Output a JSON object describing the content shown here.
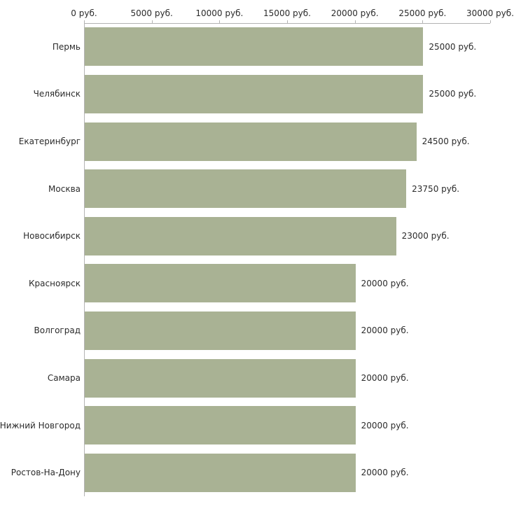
{
  "chart_data": {
    "type": "bar",
    "orientation": "horizontal",
    "title": "",
    "xlabel": "",
    "ylabel": "",
    "xlim": [
      0,
      30000
    ],
    "grid": false,
    "axis_position": "top-left",
    "bar_color": "#a9b294",
    "axis_color": "#b3b3b3",
    "text_color": "#2b2b2b",
    "categories": [
      "Пермь",
      "Челябинск",
      "Екатеринбург",
      "Москва",
      "Новосибирск",
      "Красноярск",
      "Волгоград",
      "Самара",
      "Нижний Новгород",
      "Ростов-На-Дону"
    ],
    "values": [
      25000,
      25000,
      24500,
      23750,
      23000,
      20000,
      20000,
      20000,
      20000,
      20000
    ],
    "value_labels": [
      "25000 руб.",
      "25000 руб.",
      "24500 руб.",
      "23750 руб.",
      "23000 руб.",
      "20000 руб.",
      "20000 руб.",
      "20000 руб.",
      "20000 руб.",
      "20000 руб."
    ],
    "x_ticks": [
      {
        "value": 0,
        "label": "0 руб."
      },
      {
        "value": 5000,
        "label": "5000 руб."
      },
      {
        "value": 10000,
        "label": "10000 руб."
      },
      {
        "value": 15000,
        "label": "15000 руб."
      },
      {
        "value": 20000,
        "label": "20000 руб."
      },
      {
        "value": 25000,
        "label": "25000 руб."
      },
      {
        "value": 30000,
        "label": "30000 руб."
      }
    ]
  }
}
